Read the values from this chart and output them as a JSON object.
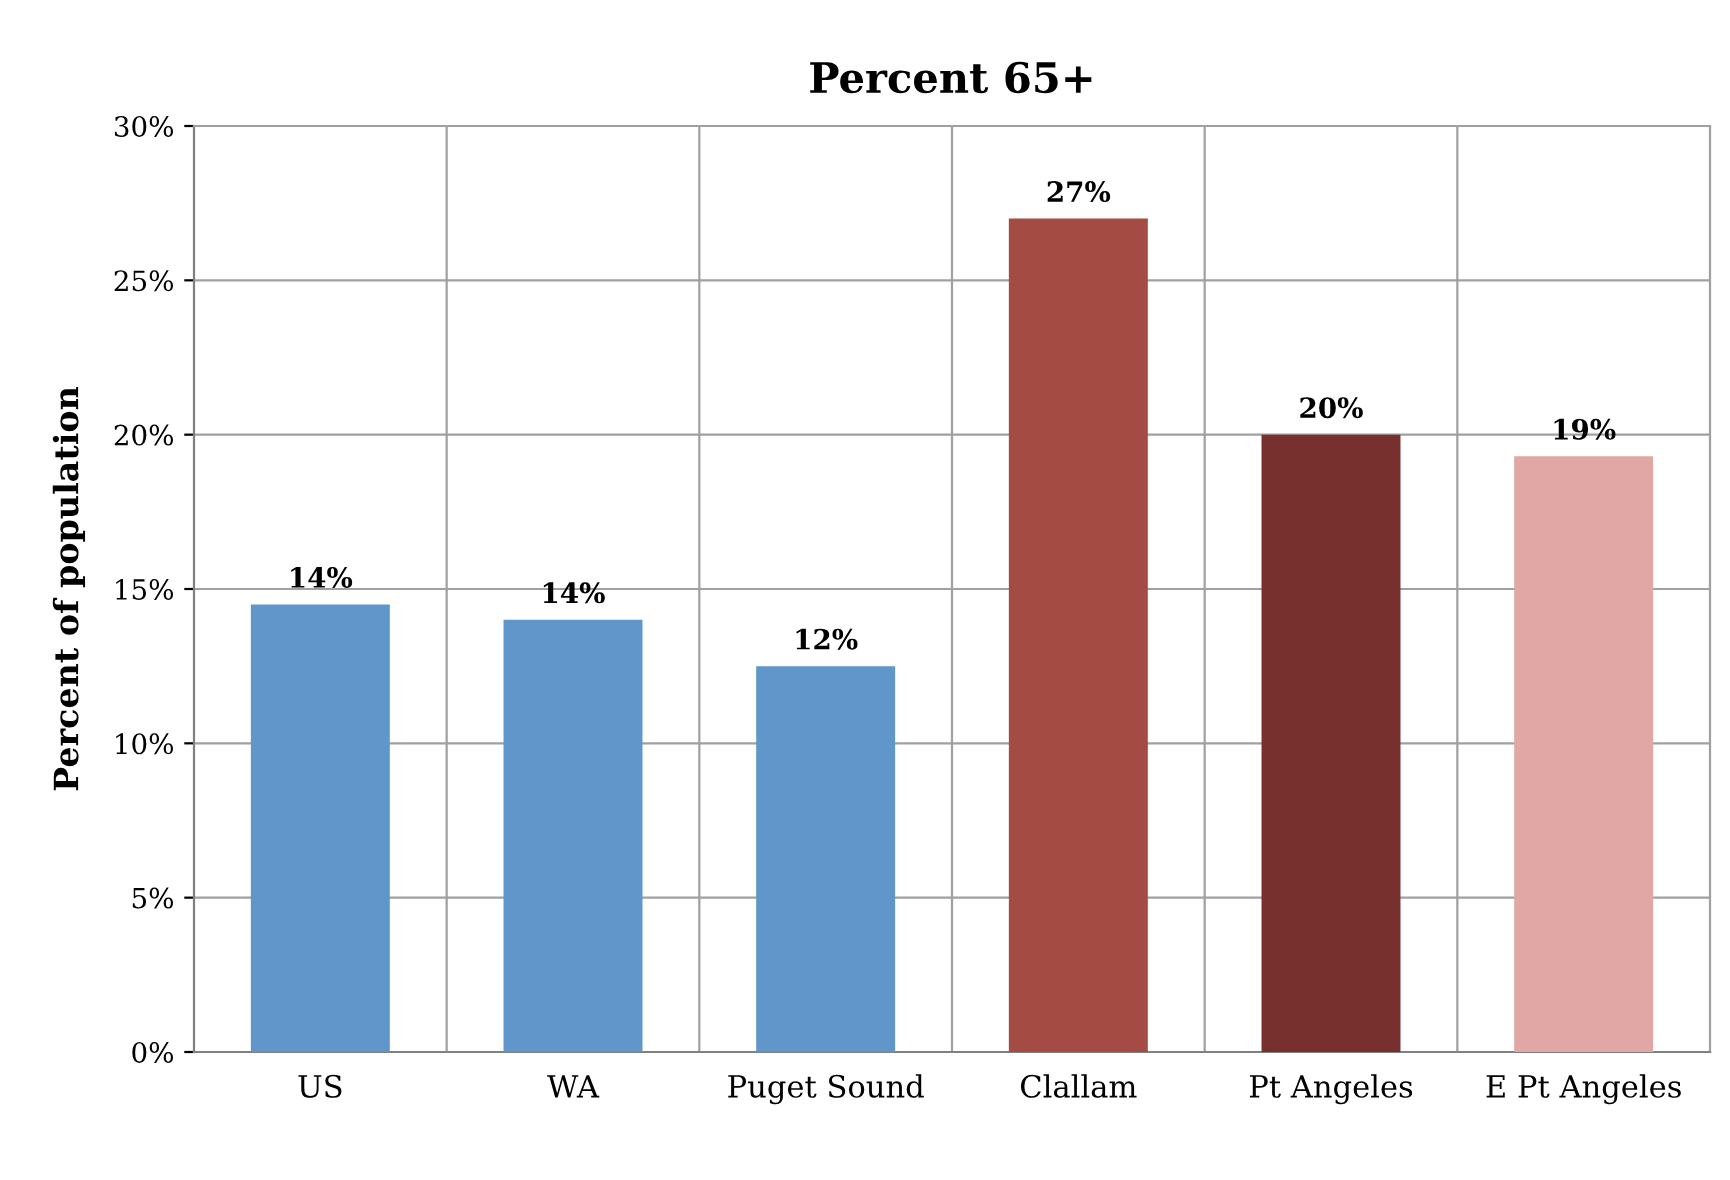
{
  "chart_data": {
    "type": "bar",
    "title": "Percent 65+",
    "ylabel": "Percent of population",
    "categories": [
      "US",
      "WA",
      "Puget Sound",
      "Clallam",
      "Pt Angeles",
      "E Pt Angeles"
    ],
    "values": [
      14.5,
      14.0,
      12.5,
      27.0,
      20.0,
      19.3
    ],
    "colors": [
      "#6096c9",
      "#6096c9",
      "#6096c9",
      "#a44b43",
      "#78302f",
      "#e0a7a5"
    ],
    "value_labels": [
      "14%",
      "14%",
      "12%",
      "27%",
      "20%",
      "19%"
    ],
    "ylim": [
      0,
      30
    ],
    "yticks": [
      {
        "value": 0,
        "label": "0%"
      },
      {
        "value": 5,
        "label": "5%"
      },
      {
        "value": 10,
        "label": "10%"
      },
      {
        "value": 15,
        "label": "15%"
      },
      {
        "value": 20,
        "label": "20%"
      },
      {
        "value": 25,
        "label": "25%"
      },
      {
        "value": 30,
        "label": "30%"
      }
    ],
    "grid": true,
    "legend": false
  }
}
